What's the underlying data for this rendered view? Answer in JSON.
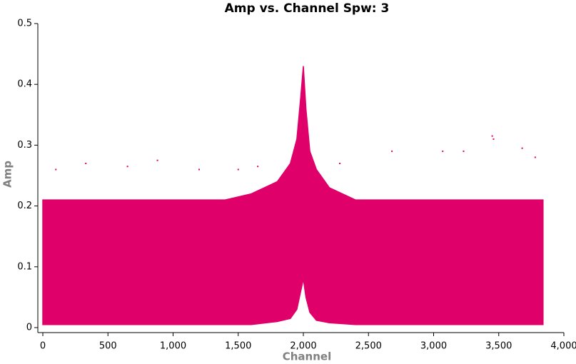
{
  "chart_data": {
    "type": "scatter-band",
    "title": "Amp vs. Channel Spw: 3",
    "x_label": "Channel",
    "y_label": "Amp",
    "color": "#e0006a",
    "xlim": [
      0,
      4000
    ],
    "xticks": [
      0,
      500,
      {
        "value": 1000,
        "label": "1,000"
      },
      {
        "value": 1500,
        "label": "1,500"
      },
      {
        "value": 2000,
        "label": "2,000"
      },
      {
        "value": 2500,
        "label": "2,500"
      },
      {
        "value": 3000,
        "label": "3,000"
      },
      {
        "value": 3500,
        "label": "3,500"
      },
      {
        "value": 4000,
        "label": "4,000"
      }
    ],
    "ylim": [
      0,
      0.5
    ],
    "yticks": [
      0,
      0.1,
      0.2,
      0.3,
      0.4,
      0.5
    ],
    "x": [
      0,
      200,
      400,
      600,
      800,
      1000,
      1200,
      1400,
      1600,
      1800,
      1900,
      1950,
      1980,
      2000,
      2020,
      2050,
      2100,
      2200,
      2400,
      2600,
      2800,
      3000,
      3200,
      3400,
      3600,
      3840
    ],
    "y_upper": [
      0.21,
      0.21,
      0.21,
      0.21,
      0.21,
      0.21,
      0.21,
      0.21,
      0.22,
      0.24,
      0.27,
      0.31,
      0.38,
      0.43,
      0.36,
      0.29,
      0.26,
      0.23,
      0.21,
      0.21,
      0.21,
      0.21,
      0.21,
      0.21,
      0.21,
      0.21
    ],
    "y_lower": [
      0.005,
      0.005,
      0.005,
      0.005,
      0.005,
      0.005,
      0.005,
      0.005,
      0.005,
      0.01,
      0.015,
      0.03,
      0.06,
      0.08,
      0.05,
      0.025,
      0.012,
      0.008,
      0.005,
      0.005,
      0.005,
      0.005,
      0.005,
      0.005,
      0.005,
      0.005
    ],
    "outliers": {
      "x": [
        100,
        330,
        650,
        880,
        1200,
        1500,
        1650,
        2280,
        2680,
        3070,
        3230,
        3450,
        3460,
        3680,
        3780
      ],
      "y": [
        0.26,
        0.27,
        0.265,
        0.275,
        0.26,
        0.26,
        0.265,
        0.27,
        0.29,
        0.29,
        0.29,
        0.315,
        0.31,
        0.295,
        0.28
      ]
    }
  }
}
